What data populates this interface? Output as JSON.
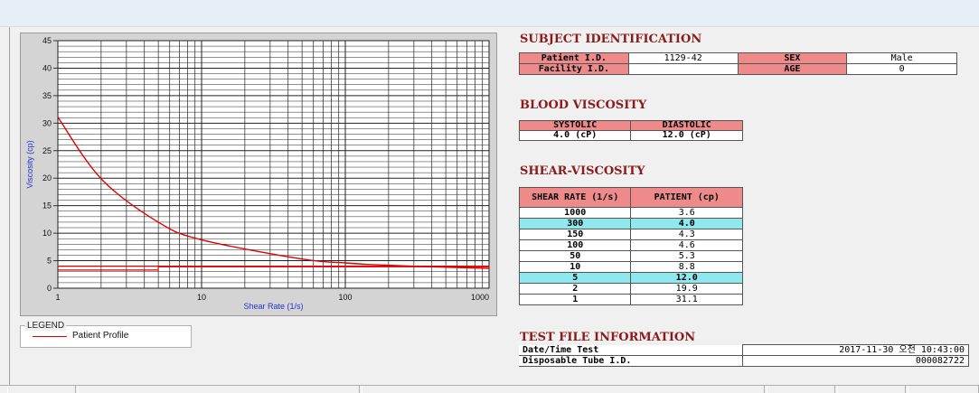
{
  "chart": {
    "ylabel": "Viscosity (cp)",
    "xlabel": "Shear Rate (1/s)",
    "y_ticks": [
      "45",
      "40",
      "35",
      "30",
      "25",
      "20",
      "15",
      "10",
      "5",
      "0"
    ],
    "x_ticks": [
      "1",
      "10",
      "100",
      "1000"
    ],
    "colors": {
      "series": "#e00000",
      "grid": "#222222",
      "plot_bg": "#ffffff",
      "axis_label": "#2233cc"
    }
  },
  "chart_data": {
    "type": "line",
    "xlabel": "Shear Rate (1/s)",
    "ylabel": "Viscosity (cp)",
    "xscale": "log",
    "xlim": [
      1,
      1000
    ],
    "ylim": [
      0,
      45
    ],
    "grid": true,
    "legend": "bottom-left",
    "series": [
      {
        "name": "Patient Profile",
        "x": [
          1,
          2,
          5,
          10,
          50,
          100,
          150,
          300,
          1000
        ],
        "y": [
          31.1,
          19.9,
          12.0,
          8.8,
          5.3,
          4.6,
          4.3,
          4.0,
          3.6
        ]
      }
    ],
    "reference_lines": [
      {
        "y_from": 3.3,
        "y_to": 3.9,
        "x_break": 5
      },
      {
        "y": 4.0
      }
    ]
  },
  "legend": {
    "title": "LEGEND",
    "label": "Patient Profile"
  },
  "subject": {
    "title": "SUBJECT IDENTIFICATION",
    "patient_label": "Patient I.D.",
    "patient_value": "1129-42",
    "sex_label": "SEX",
    "sex_value": "Male",
    "facility_label": "Facility I.D.",
    "facility_value": "",
    "age_label": "AGE",
    "age_value": "0"
  },
  "blood": {
    "title": "BLOOD VISCOSITY",
    "systolic_label": "SYSTOLIC",
    "diastolic_label": "DIASTOLIC",
    "systolic_value": "4.0 (cP)",
    "diastolic_value": "12.0 (cP)"
  },
  "shear": {
    "title": "SHEAR-VISCOSITY",
    "col1": "SHEAR RATE (1/s)",
    "col2": "PATIENT (cp)",
    "rows": [
      {
        "rate": "1000",
        "val": "3.6"
      },
      {
        "rate": "300",
        "val": "4.0"
      },
      {
        "rate": "150",
        "val": "4.3"
      },
      {
        "rate": "100",
        "val": "4.6"
      },
      {
        "rate": "50",
        "val": "5.3"
      },
      {
        "rate": "10",
        "val": "8.8"
      },
      {
        "rate": "5",
        "val": "12.0"
      },
      {
        "rate": "2",
        "val": "19.9"
      },
      {
        "rate": "1",
        "val": "31.1"
      }
    ]
  },
  "testfile": {
    "title": "TEST FILE INFORMATION",
    "date_label": "Date/Time Test",
    "date_value": "2017-11-30  오전 10:43:00",
    "tube_label": "Disposable Tube I.D.",
    "tube_value": "000082722"
  }
}
